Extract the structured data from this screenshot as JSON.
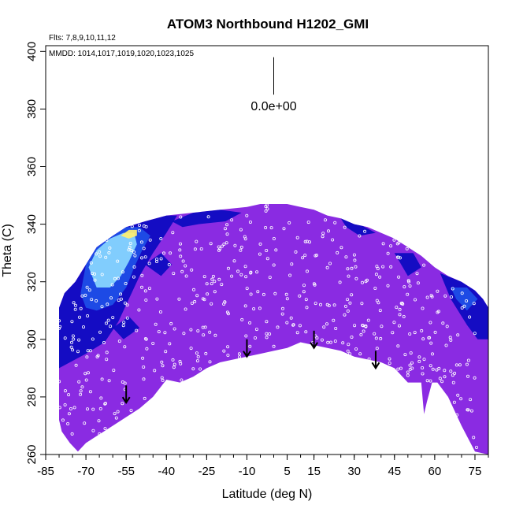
{
  "chart_data": {
    "type": "heatmap",
    "title": "ATOM3 Northbound H1202_GMI",
    "info_flights": "Flts: 7,8,9,10,11,12",
    "info_dates": "MMDD: 1014,1017,1019,1020,1023,1025",
    "xlabel": "Latitude (deg N)",
    "ylabel": "Theta (C)",
    "xlim": [
      -85,
      80
    ],
    "ylim": [
      260,
      402
    ],
    "x_ticks": [
      -85,
      -70,
      -55,
      -40,
      -25,
      -10,
      5,
      15,
      30,
      45,
      60,
      75
    ],
    "y_ticks": [
      260,
      280,
      300,
      320,
      340,
      360,
      380,
      400
    ],
    "scale_label": "0.0e+00",
    "colors": {
      "field_main": "#8a2be2",
      "field_dark": "#0a0ac0",
      "field_mid": "#1e50e8",
      "field_light": "#8ad8ff",
      "field_highlight": "#fff070",
      "obs_points": "#ffffff",
      "arrows": "#000000"
    },
    "domain_upper": [
      [
        -80,
        311
      ],
      [
        -78,
        316
      ],
      [
        -74,
        320
      ],
      [
        -70,
        326
      ],
      [
        -66,
        332
      ],
      [
        -60,
        336
      ],
      [
        -55,
        339
      ],
      [
        -48,
        341
      ],
      [
        -40,
        343
      ],
      [
        -30,
        344
      ],
      [
        -20,
        345
      ],
      [
        -10,
        346
      ],
      [
        -5,
        347
      ],
      [
        0,
        347
      ],
      [
        5,
        347
      ],
      [
        10,
        346
      ],
      [
        15,
        345
      ],
      [
        20,
        343
      ],
      [
        25,
        342
      ],
      [
        30,
        340
      ],
      [
        35,
        339
      ],
      [
        40,
        337
      ],
      [
        45,
        335
      ],
      [
        50,
        332
      ],
      [
        55,
        329
      ],
      [
        60,
        325
      ],
      [
        65,
        322
      ],
      [
        70,
        320
      ],
      [
        75,
        317
      ],
      [
        78,
        314
      ],
      [
        80,
        311
      ]
    ],
    "domain_lower": [
      [
        80,
        260
      ],
      [
        75,
        261
      ],
      [
        70,
        270
      ],
      [
        65,
        280
      ],
      [
        61,
        285
      ],
      [
        59,
        285
      ],
      [
        57,
        278
      ],
      [
        56,
        274
      ],
      [
        55,
        285
      ],
      [
        50,
        285
      ],
      [
        45,
        290
      ],
      [
        40,
        292
      ],
      [
        35,
        293
      ],
      [
        30,
        294
      ],
      [
        25,
        296
      ],
      [
        20,
        297
      ],
      [
        15,
        298
      ],
      [
        10,
        299
      ],
      [
        5,
        297
      ],
      [
        0,
        296
      ],
      [
        -5,
        295
      ],
      [
        -10,
        294
      ],
      [
        -15,
        293
      ],
      [
        -20,
        292
      ],
      [
        -25,
        290
      ],
      [
        -30,
        287
      ],
      [
        -35,
        285
      ],
      [
        -40,
        286
      ],
      [
        -45,
        280
      ],
      [
        -50,
        276
      ],
      [
        -55,
        273
      ],
      [
        -60,
        270
      ],
      [
        -65,
        267
      ],
      [
        -70,
        264
      ],
      [
        -73,
        261
      ],
      [
        -76,
        264
      ],
      [
        -79,
        268
      ],
      [
        -80,
        272
      ]
    ],
    "features": [
      {
        "level": "dark",
        "polygon": [
          [
            -80,
            290
          ],
          [
            -80,
            311
          ],
          [
            -78,
            316
          ],
          [
            -74,
            320
          ],
          [
            -70,
            326
          ],
          [
            -66,
            332
          ],
          [
            -60,
            336
          ],
          [
            -55,
            339
          ],
          [
            -48,
            341
          ],
          [
            -40,
            343
          ],
          [
            -36,
            343
          ],
          [
            -40,
            337
          ],
          [
            -45,
            330
          ],
          [
            -50,
            322
          ],
          [
            -54,
            314
          ],
          [
            -58,
            306
          ],
          [
            -63,
            299
          ],
          [
            -70,
            295
          ],
          [
            -76,
            292
          ]
        ]
      },
      {
        "level": "mid",
        "polygon": [
          [
            -72,
            316
          ],
          [
            -70,
            326
          ],
          [
            -66,
            332
          ],
          [
            -60,
            336
          ],
          [
            -55,
            339
          ],
          [
            -50,
            339
          ],
          [
            -46,
            336
          ],
          [
            -49,
            331
          ],
          [
            -52,
            325
          ],
          [
            -55,
            318
          ],
          [
            -60,
            312
          ],
          [
            -66,
            310
          ],
          [
            -70,
            311
          ]
        ]
      },
      {
        "level": "light",
        "polygon": [
          [
            -69,
            325
          ],
          [
            -66,
            331
          ],
          [
            -61,
            335
          ],
          [
            -56,
            337
          ],
          [
            -52,
            337
          ],
          [
            -51,
            333
          ],
          [
            -54,
            327
          ],
          [
            -57,
            322
          ],
          [
            -61,
            318
          ],
          [
            -66,
            318
          ]
        ]
      },
      {
        "level": "highlight",
        "polygon": [
          [
            -57,
            336
          ],
          [
            -54,
            338
          ],
          [
            -51,
            338
          ],
          [
            -51,
            336
          ],
          [
            -54,
            335
          ]
        ]
      },
      {
        "level": "dark",
        "polygon": [
          [
            -38,
            341
          ],
          [
            -30,
            344
          ],
          [
            -20,
            345
          ],
          [
            -12,
            344
          ],
          [
            -18,
            341
          ],
          [
            -28,
            340
          ],
          [
            -34,
            339
          ]
        ]
      },
      {
        "level": "dark",
        "polygon": [
          [
            -48,
            326
          ],
          [
            -42,
            330
          ],
          [
            -38,
            326
          ],
          [
            -42,
            322
          ]
        ]
      },
      {
        "level": "dark",
        "polygon": [
          [
            -60,
            304
          ],
          [
            -54,
            308
          ],
          [
            -50,
            304
          ],
          [
            -56,
            300
          ]
        ]
      },
      {
        "level": "dark",
        "polygon": [
          [
            62,
            323
          ],
          [
            70,
            320
          ],
          [
            75,
            317
          ],
          [
            78,
            314
          ],
          [
            80,
            311
          ],
          [
            80,
            300
          ],
          [
            76,
            300
          ],
          [
            72,
            305
          ],
          [
            66,
            314
          ]
        ]
      },
      {
        "level": "mid",
        "polygon": [
          [
            66,
            318
          ],
          [
            72,
            318
          ],
          [
            76,
            314
          ],
          [
            72,
            310
          ],
          [
            68,
            314
          ]
        ]
      },
      {
        "level": "dark",
        "polygon": [
          [
            45,
            330
          ],
          [
            52,
            330
          ],
          [
            55,
            325
          ],
          [
            50,
            322
          ]
        ]
      },
      {
        "level": "dark",
        "polygon": [
          [
            25,
            342
          ],
          [
            32,
            340
          ],
          [
            38,
            337
          ],
          [
            32,
            336
          ],
          [
            27,
            339
          ]
        ]
      }
    ],
    "arrows": [
      [
        -55,
        284,
        278
      ],
      [
        -10,
        300,
        294
      ],
      [
        15,
        303,
        297
      ],
      [
        38,
        296,
        290
      ]
    ],
    "scale_bar": [
      0,
      398,
      385
    ]
  }
}
